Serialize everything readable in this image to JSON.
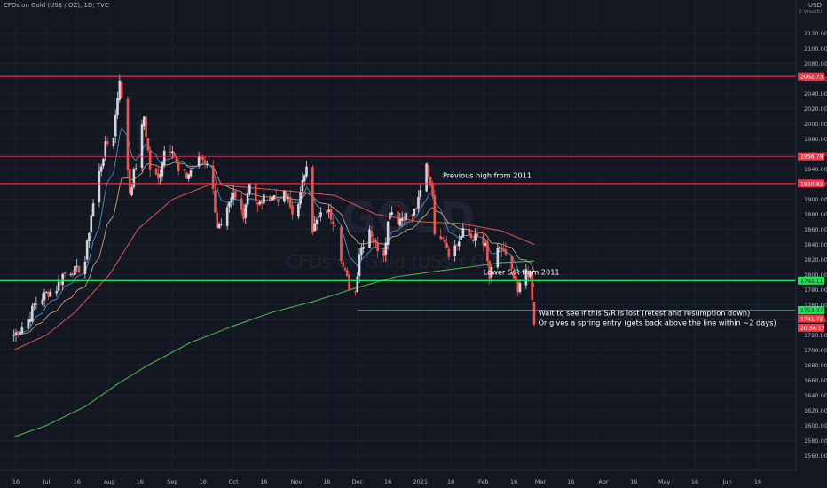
{
  "header": {
    "symbol_line": "CFDs on Gold (US$ / OZ), 1D, TVC"
  },
  "currency": {
    "label": "USD",
    "sub": "2 Westbl"
  },
  "watermark": {
    "line1": "GOLD",
    "line2": "CFDs on Gold (US$ / OZ)"
  },
  "colors": {
    "background": "#131722",
    "up": "#d1d4dc",
    "down": "#ef5350",
    "ema_fast": "#4a90c2",
    "ema_mid": "#c9a27a",
    "ma_mid": "#e0574f",
    "ma_slow": "#4caf50",
    "resistance": "#f23645",
    "support": "#22e05a",
    "grid": "#1c2030"
  },
  "chart_data": {
    "type": "candlestick",
    "title": "CFDs on Gold (US$ / OZ), 1D, TVC",
    "ylim": [
      1550,
      2150
    ],
    "yticks": [
      1560,
      1580,
      1600,
      1620,
      1640,
      1660,
      1680,
      1700,
      1720,
      1740,
      1760,
      1780,
      1800,
      1820,
      1840,
      1860,
      1880,
      1900,
      1920,
      1940,
      1960,
      1980,
      2000,
      2020,
      2040,
      2060,
      2080,
      2100,
      2120
    ],
    "x_ticks": [
      "16",
      "Jul",
      "16",
      "Aug",
      "16",
      "Sep",
      "16",
      "Oct",
      "16",
      "Nov",
      "16",
      "Dec",
      "16",
      "2021",
      "16",
      "Feb",
      "16",
      "Mar",
      "16",
      "Apr",
      "16",
      "May",
      "16",
      "Jun",
      "16"
    ],
    "close_path": [
      [
        "2020-06-15",
        1720
      ],
      [
        "2020-06-18",
        1728
      ],
      [
        "2020-06-22",
        1740
      ],
      [
        "2020-06-25",
        1760
      ],
      [
        "2020-06-29",
        1770
      ],
      [
        "2020-07-01",
        1775
      ],
      [
        "2020-07-06",
        1782
      ],
      [
        "2020-07-09",
        1800
      ],
      [
        "2020-07-13",
        1805
      ],
      [
        "2020-07-16",
        1805
      ],
      [
        "2020-07-20",
        1818
      ],
      [
        "2020-07-23",
        1880
      ],
      [
        "2020-07-27",
        1935
      ],
      [
        "2020-07-30",
        1970
      ],
      [
        "2020-08-03",
        1985
      ],
      [
        "2020-08-06",
        2062
      ],
      [
        "2020-08-07",
        2030
      ],
      [
        "2020-08-11",
        1910
      ],
      [
        "2020-08-14",
        1945
      ],
      [
        "2020-08-18",
        2010
      ],
      [
        "2020-08-21",
        1940
      ],
      [
        "2020-08-25",
        1925
      ],
      [
        "2020-08-28",
        1965
      ],
      [
        "2020-09-01",
        1970
      ],
      [
        "2020-09-04",
        1935
      ],
      [
        "2020-09-08",
        1930
      ],
      [
        "2020-09-11",
        1942
      ],
      [
        "2020-09-15",
        1955
      ],
      [
        "2020-09-18",
        1950
      ],
      [
        "2020-09-21",
        1910
      ],
      [
        "2020-09-23",
        1865
      ],
      [
        "2020-09-25",
        1862
      ],
      [
        "2020-09-29",
        1890
      ],
      [
        "2020-10-01",
        1905
      ],
      [
        "2020-10-06",
        1880
      ],
      [
        "2020-10-09",
        1925
      ],
      [
        "2020-10-13",
        1890
      ],
      [
        "2020-10-16",
        1900
      ],
      [
        "2020-10-20",
        1905
      ],
      [
        "2020-10-23",
        1902
      ],
      [
        "2020-10-27",
        1905
      ],
      [
        "2020-10-30",
        1880
      ],
      [
        "2020-11-03",
        1905
      ],
      [
        "2020-11-06",
        1950
      ],
      [
        "2020-11-09",
        1860
      ],
      [
        "2020-11-12",
        1875
      ],
      [
        "2020-11-16",
        1885
      ],
      [
        "2020-11-20",
        1870
      ],
      [
        "2020-11-24",
        1810
      ],
      [
        "2020-11-27",
        1785
      ],
      [
        "2020-11-30",
        1778
      ],
      [
        "2020-12-02",
        1830
      ],
      [
        "2020-12-07",
        1862
      ],
      [
        "2020-12-10",
        1838
      ],
      [
        "2020-12-14",
        1830
      ],
      [
        "2020-12-17",
        1888
      ],
      [
        "2020-12-21",
        1872
      ],
      [
        "2020-12-24",
        1878
      ],
      [
        "2020-12-28",
        1878
      ],
      [
        "2020-12-31",
        1897
      ],
      [
        "2021-01-04",
        1945
      ],
      [
        "2021-01-06",
        1920
      ],
      [
        "2021-01-07",
        1910
      ],
      [
        "2021-01-08",
        1848
      ],
      [
        "2021-01-12",
        1855
      ],
      [
        "2021-01-15",
        1830
      ],
      [
        "2021-01-19",
        1840
      ],
      [
        "2021-01-22",
        1856
      ],
      [
        "2021-01-26",
        1850
      ],
      [
        "2021-01-29",
        1848
      ],
      [
        "2021-02-02",
        1836
      ],
      [
        "2021-02-04",
        1795
      ],
      [
        "2021-02-09",
        1838
      ],
      [
        "2021-02-12",
        1823
      ],
      [
        "2021-02-16",
        1795
      ],
      [
        "2021-02-18",
        1775
      ],
      [
        "2021-02-19",
        1784
      ],
      [
        "2021-02-22",
        1808
      ],
      [
        "2021-02-24",
        1797
      ],
      [
        "2021-02-26",
        1734
      ]
    ],
    "ma200_path": [
      [
        "2020-06-15",
        1585
      ],
      [
        "2020-07-01",
        1600
      ],
      [
        "2020-07-20",
        1625
      ],
      [
        "2020-08-05",
        1655
      ],
      [
        "2020-08-20",
        1680
      ],
      [
        "2020-09-10",
        1710
      ],
      [
        "2020-10-01",
        1732
      ],
      [
        "2020-10-20",
        1750
      ],
      [
        "2020-11-10",
        1765
      ],
      [
        "2020-11-30",
        1782
      ],
      [
        "2020-12-20",
        1797
      ],
      [
        "2021-01-10",
        1805
      ],
      [
        "2021-01-25",
        1810
      ],
      [
        "2021-02-10",
        1816
      ],
      [
        "2021-02-26",
        1818
      ]
    ],
    "ma50_path": [
      [
        "2020-06-15",
        1700
      ],
      [
        "2020-07-01",
        1720
      ],
      [
        "2020-07-15",
        1750
      ],
      [
        "2020-08-01",
        1800
      ],
      [
        "2020-08-15",
        1860
      ],
      [
        "2020-09-01",
        1900
      ],
      [
        "2020-09-20",
        1920
      ],
      [
        "2020-10-10",
        1915
      ],
      [
        "2020-11-01",
        1910
      ],
      [
        "2020-11-20",
        1905
      ],
      [
        "2020-12-10",
        1880
      ],
      [
        "2021-01-01",
        1870
      ],
      [
        "2021-01-20",
        1868
      ],
      [
        "2021-02-10",
        1858
      ],
      [
        "2021-02-26",
        1840
      ]
    ],
    "horizontal_lines": [
      {
        "price": 2062.73,
        "label": "2062.73",
        "kind": "resistance"
      },
      {
        "price": 1956.79,
        "label": "1956.79",
        "kind": "resistance",
        "thin": true
      },
      {
        "price": 1920.82,
        "label": "1920.82",
        "kind": "resistance"
      },
      {
        "price": 1792.0,
        "label": "1792.11",
        "kind": "support"
      },
      {
        "price": 1753.0,
        "label": "1753.37",
        "kind": "support_thin"
      }
    ],
    "price_tags": [
      {
        "price": 1741.7,
        "label": "1741.72"
      },
      {
        "price": 1729.5,
        "label": "20:56:17"
      }
    ],
    "annotations": [
      {
        "text": "Previous high from 2011",
        "price": 1928,
        "date": "2021-01-12"
      },
      {
        "text": "Lower S/R from 2011",
        "price": 1800,
        "date": "2021-02-01"
      },
      {
        "text": "Wait to see if this S/R is lost (retest and resumption down)",
        "price": 1746,
        "date": "2021-02-28"
      },
      {
        "text": "Or gives a spring entry (gets back above the line within ~2 days)",
        "price": 1733,
        "date": "2021-02-28"
      }
    ]
  }
}
